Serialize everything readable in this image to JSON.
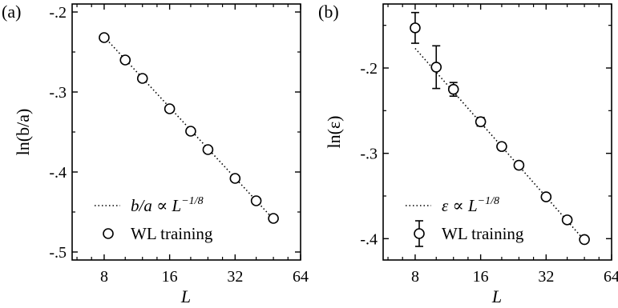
{
  "panels": [
    {
      "label": "(a)",
      "ylabel": "ln(b/a)",
      "xlabel": "L",
      "legend": {
        "fit": "b/a ∝ L",
        "fit_exp": "−1/8",
        "data": "WL training"
      }
    },
    {
      "label": "(b)",
      "ylabel": "ln(ε)",
      "xlabel": "L",
      "legend": {
        "fit": "ε ∝ L",
        "fit_exp": "−1/8",
        "data": "WL training"
      }
    }
  ],
  "chart_data": [
    {
      "type": "scatter",
      "x_scale": "log2",
      "xlim": [
        5.7,
        64
      ],
      "ylim": [
        -0.51,
        -0.19
      ],
      "xticks": [
        8,
        16,
        32,
        64
      ],
      "yticks": [
        -0.5,
        -0.4,
        -0.3,
        -0.2
      ],
      "xlabel": "L",
      "ylabel": "ln(b/a)",
      "series": [
        {
          "name": "WL training",
          "marker": "open-circle",
          "x": [
            8,
            10,
            12,
            16,
            20,
            24,
            32,
            40,
            48
          ],
          "y": [
            -0.232,
            -0.26,
            -0.283,
            -0.321,
            -0.349,
            -0.372,
            -0.408,
            -0.436,
            -0.458
          ]
        },
        {
          "name": "b/a ∝ L^−1/8",
          "style": "dotted",
          "x": [
            8,
            48
          ],
          "y": [
            -0.231,
            -0.459
          ]
        }
      ]
    },
    {
      "type": "scatter",
      "x_scale": "log2",
      "xlim": [
        5.7,
        64
      ],
      "ylim": [
        -0.425,
        -0.125
      ],
      "xticks": [
        8,
        16,
        32,
        64
      ],
      "yticks": [
        -0.4,
        -0.3,
        -0.2
      ],
      "xlabel": "L",
      "ylabel": "ln(ε)",
      "series": [
        {
          "name": "WL training",
          "marker": "open-circle",
          "error_bars": true,
          "x": [
            8,
            10,
            12,
            16,
            20,
            24,
            32,
            40,
            48
          ],
          "y": [
            -0.153,
            -0.199,
            -0.225,
            -0.263,
            -0.292,
            -0.314,
            -0.351,
            -0.378,
            -0.401
          ],
          "yerr": [
            0.018,
            0.025,
            0.008,
            0.005,
            0.004,
            0.004,
            0.003,
            0.003,
            0.002
          ]
        },
        {
          "name": "ε ∝ L^−1/8",
          "style": "dotted",
          "x": [
            8,
            48
          ],
          "y": [
            -0.177,
            -0.402
          ]
        }
      ]
    }
  ]
}
